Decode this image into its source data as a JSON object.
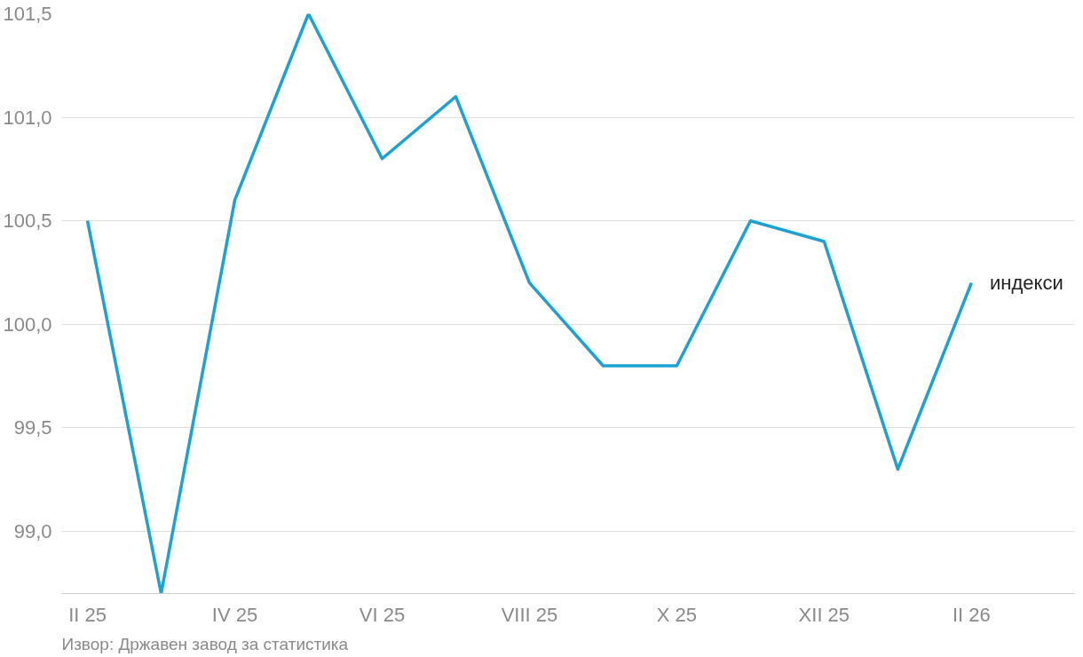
{
  "chart_data": {
    "type": "line",
    "categories": [
      "II 25",
      null,
      "IV 25",
      null,
      "VI 25",
      null,
      "VIII 25",
      null,
      "X 25",
      null,
      "XII 25",
      null,
      "II 26"
    ],
    "series": [
      {
        "name": "индекси",
        "color": "#1ba2d0",
        "values": [
          100.5,
          98.7,
          100.6,
          101.5,
          100.8,
          101.1,
          100.2,
          99.8,
          99.8,
          100.5,
          100.4,
          99.3,
          100.2
        ]
      }
    ],
    "ylim": [
      98.7,
      101.5
    ],
    "yticks": [
      {
        "value": 99,
        "label": "99,0"
      },
      {
        "value": 99.5,
        "label": "99,5"
      },
      {
        "value": 100,
        "label": "100,0"
      },
      {
        "value": 100.5,
        "label": "100,5"
      },
      {
        "value": 101,
        "label": "101,0"
      },
      {
        "value": 101.5,
        "label": "101,5"
      }
    ],
    "grid": "y",
    "legend": false,
    "marker": "none",
    "line_style": "solid",
    "annotations": [
      "Извор: Државен завод за статистика"
    ]
  }
}
